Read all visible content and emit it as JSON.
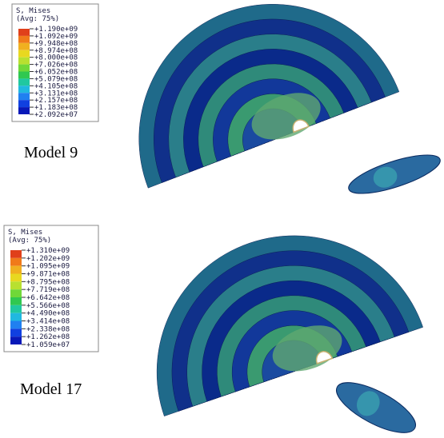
{
  "panels": [
    {
      "legend": {
        "title": "S, Mises",
        "subtitle": "(Avg: 75%)",
        "values": [
          "+1.190e+09",
          "+1.092e+09",
          "+9.948e+08",
          "+8.974e+08",
          "+8.000e+08",
          "+7.026e+08",
          "+6.052e+08",
          "+5.079e+08",
          "+4.105e+08",
          "+3.131e+08",
          "+2.157e+08",
          "+1.183e+08",
          "+2.092e+07"
        ]
      },
      "label": "Model 9"
    },
    {
      "legend": {
        "title": "S, Mises",
        "subtitle": "(Avg: 75%)",
        "values": [
          "+1.310e+09",
          "+1.202e+09",
          "+1.095e+09",
          "+9.871e+08",
          "+8.795e+08",
          "+7.719e+08",
          "+6.642e+08",
          "+5.566e+08",
          "+4.490e+08",
          "+3.414e+08",
          "+2.338e+08",
          "+1.262e+08",
          "+1.059e+07"
        ]
      },
      "label": "Model 17"
    }
  ]
}
